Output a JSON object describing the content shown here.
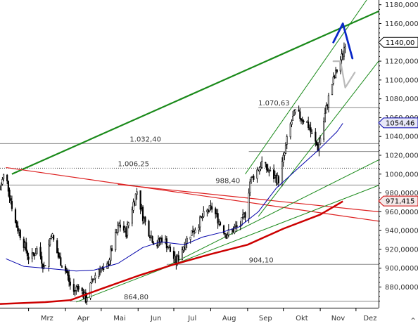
{
  "chart_data": {
    "type": "candlestick",
    "x_axis": {
      "months": [
        {
          "label": "Mrz",
          "date": "2013-03-01"
        },
        {
          "label": "Apr",
          "date": "2013-04-01"
        },
        {
          "label": "Mai",
          "date": "2013-05-01"
        },
        {
          "label": "Jun",
          "date": "2013-06-01"
        },
        {
          "label": "Jul",
          "date": "2013-07-01"
        },
        {
          "label": "Aug",
          "date": "2013-08-01"
        },
        {
          "label": "Sep",
          "date": "2013-09-01"
        },
        {
          "label": "Okt",
          "date": "2013-10-01"
        },
        {
          "label": "Nov",
          "date": "2013-11-01"
        },
        {
          "label": "Dez",
          "date": "2013-12-01"
        }
      ],
      "range": [
        "2013-02-05",
        "2013-12-20"
      ]
    },
    "y_axis": {
      "ylim": [
        858,
        1185
      ],
      "ticks": [
        "880,0000",
        "900,0000",
        "920,0000",
        "940,0000",
        "960,0000",
        "980,0000",
        "1000,000",
        "1020,000",
        "1040,000",
        "1060,000",
        "1080,000",
        "1100,000",
        "1120,000",
        "1140,000",
        "1160,000",
        "1180,000"
      ]
    },
    "badges": [
      {
        "label": "1140,00",
        "value": 1140,
        "color": "#000000",
        "fill": "#ffffff"
      },
      {
        "label": "1054,46",
        "value": 1054.46,
        "color": "#0000aa",
        "fill": "#e8e8f8"
      },
      {
        "label": "971,415",
        "value": 971.415,
        "color": "#cc0000",
        "fill": "#f4e8e8"
      }
    ],
    "levels": [
      {
        "label": "1.070,63",
        "value": 1070.63,
        "label_date": "2013-09-10",
        "start": "2013-09-10",
        "style": "solid"
      },
      {
        "label": "1.032,40",
        "value": 1032.4,
        "label_date": "2013-05-25",
        "start": "2013-02-05",
        "style": "solid"
      },
      {
        "label": "",
        "value": 1024,
        "label_date": "",
        "start": "2013-09-02",
        "style": "solid"
      },
      {
        "label": "1.006,25",
        "value": 1006.25,
        "label_date": "2013-05-15",
        "start": "2013-02-05",
        "style": "dotted"
      },
      {
        "label": "988,40",
        "value": 988.4,
        "label_date": "2013-08-05",
        "start": "2013-02-05",
        "style": "solid"
      },
      {
        "label": "904,10",
        "value": 904.1,
        "label_date": "2013-09-02",
        "start": "2013-06-25",
        "style": "solid"
      },
      {
        "label": "864,80",
        "value": 864.8,
        "label_date": "2013-05-20",
        "start": "2013-04-05",
        "style": "solid"
      }
    ],
    "trendlines": [
      {
        "name": "long-term-channel-top",
        "color": "#1a8a1a",
        "width": 2.2,
        "from": [
          "2013-02-15",
          1000
        ],
        "to": [
          "2013-12-20",
          1173
        ]
      },
      {
        "name": "resistance-falling",
        "color": "#dd2222",
        "width": 1.2,
        "from": [
          "2013-02-10",
          1007
        ],
        "to": [
          "2013-12-20",
          950
        ]
      },
      {
        "name": "resistance-falling-2",
        "color": "#dd2222",
        "width": 1.2,
        "from": [
          "2013-05-15",
          989
        ],
        "to": [
          "2013-12-20",
          960
        ]
      },
      {
        "name": "support-rising-1",
        "color": "#1a8a1a",
        "width": 1,
        "from": [
          "2013-04-10",
          864
        ],
        "to": [
          "2013-12-20",
          988
        ]
      },
      {
        "name": "support-rising-2",
        "color": "#1a8a1a",
        "width": 1,
        "from": [
          "2013-06-25",
          902
        ],
        "to": [
          "2013-12-20",
          1015
        ]
      },
      {
        "name": "channel-upper",
        "color": "#1a8a1a",
        "width": 1,
        "from": [
          "2013-08-30",
          1000
        ],
        "to": [
          "2013-12-10",
          1185
        ]
      },
      {
        "name": "channel-lower",
        "color": "#1a8a1a",
        "width": 1,
        "from": [
          "2013-09-10",
          955
        ],
        "to": [
          "2013-12-20",
          1120
        ]
      }
    ],
    "moving_averages": [
      {
        "name": "ma-short",
        "color": "#0000aa",
        "width": 1,
        "points": [
          [
            "2013-02-10",
            910
          ],
          [
            "2013-02-25",
            902
          ],
          [
            "2013-03-15",
            900
          ],
          [
            "2013-04-10",
            897
          ],
          [
            "2013-04-25",
            898
          ],
          [
            "2013-05-15",
            905
          ],
          [
            "2013-06-05",
            922
          ],
          [
            "2013-06-20",
            928
          ],
          [
            "2013-07-10",
            925
          ],
          [
            "2013-07-25",
            933
          ],
          [
            "2013-08-10",
            938
          ],
          [
            "2013-08-25",
            944
          ],
          [
            "2013-09-10",
            960
          ],
          [
            "2013-09-25",
            985
          ],
          [
            "2013-10-15",
            1008
          ],
          [
            "2013-10-30",
            1025
          ],
          [
            "2013-11-15",
            1045
          ],
          [
            "2013-11-20",
            1054
          ]
        ]
      },
      {
        "name": "ma-long",
        "color": "#cc0000",
        "width": 2.5,
        "points": [
          [
            "2013-02-05",
            862
          ],
          [
            "2013-02-25",
            863
          ],
          [
            "2013-03-15",
            864
          ],
          [
            "2013-04-05",
            866
          ],
          [
            "2013-05-01",
            878
          ],
          [
            "2013-06-01",
            892
          ],
          [
            "2013-07-01",
            904
          ],
          [
            "2013-08-01",
            915
          ],
          [
            "2013-09-01",
            925
          ],
          [
            "2013-10-01",
            942
          ],
          [
            "2013-11-01",
            957
          ],
          [
            "2013-11-20",
            971
          ]
        ]
      }
    ],
    "projections": [
      {
        "name": "projection-up",
        "color": "#0a28c8",
        "width": 2.8,
        "points": [
          [
            "2013-11-12",
            1140
          ],
          [
            "2013-11-20",
            1160
          ],
          [
            "2013-11-28",
            1123
          ]
        ]
      },
      {
        "name": "projection-down",
        "color": "#bbbbbb",
        "width": 2.2,
        "points": [
          [
            "2013-11-12",
            1120
          ],
          [
            "2013-11-18",
            1120
          ],
          [
            "2013-11-22",
            1092
          ],
          [
            "2013-11-30",
            1108
          ]
        ]
      }
    ],
    "price_path": [
      [
        "2013-02-05",
        984
      ],
      [
        "2013-02-09",
        1003
      ],
      [
        "2013-02-12",
        985
      ],
      [
        "2013-02-18",
        948
      ],
      [
        "2013-02-24",
        930
      ],
      [
        "2013-03-02",
        908
      ],
      [
        "2013-03-09",
        922
      ],
      [
        "2013-03-14",
        900
      ],
      [
        "2013-03-20",
        938
      ],
      [
        "2013-03-26",
        912
      ],
      [
        "2013-04-02",
        895
      ],
      [
        "2013-04-07",
        873
      ],
      [
        "2013-04-12",
        882
      ],
      [
        "2013-04-18",
        867
      ],
      [
        "2013-04-24",
        888
      ],
      [
        "2013-04-30",
        902
      ],
      [
        "2013-05-04",
        892
      ],
      [
        "2013-05-10",
        921
      ],
      [
        "2013-05-16",
        946
      ],
      [
        "2013-05-22",
        938
      ],
      [
        "2013-05-27",
        965
      ],
      [
        "2013-05-31",
        982
      ],
      [
        "2013-06-05",
        955
      ],
      [
        "2013-06-10",
        939
      ],
      [
        "2013-06-16",
        924
      ],
      [
        "2013-06-22",
        933
      ],
      [
        "2013-06-28",
        918
      ],
      [
        "2013-07-03",
        906
      ],
      [
        "2013-07-09",
        924
      ],
      [
        "2013-07-15",
        937
      ],
      [
        "2013-07-21",
        946
      ],
      [
        "2013-07-27",
        958
      ],
      [
        "2013-08-02",
        964
      ],
      [
        "2013-08-08",
        950
      ],
      [
        "2013-08-14",
        936
      ],
      [
        "2013-08-20",
        941
      ],
      [
        "2013-08-26",
        946
      ],
      [
        "2013-08-30",
        958
      ],
      [
        "2013-09-03",
        992
      ],
      [
        "2013-09-08",
        1002
      ],
      [
        "2013-09-13",
        1012
      ],
      [
        "2013-09-18",
        1004
      ],
      [
        "2013-09-22",
        998
      ],
      [
        "2013-09-27",
        994
      ],
      [
        "2013-10-02",
        1022
      ],
      [
        "2013-10-06",
        1049
      ],
      [
        "2013-10-11",
        1066
      ],
      [
        "2013-10-16",
        1060
      ],
      [
        "2013-10-21",
        1055
      ],
      [
        "2013-10-26",
        1038
      ],
      [
        "2013-10-30",
        1028
      ],
      [
        "2013-11-03",
        1050
      ],
      [
        "2013-11-07",
        1076
      ],
      [
        "2013-11-11",
        1096
      ],
      [
        "2013-11-15",
        1110
      ],
      [
        "2013-11-19",
        1124
      ],
      [
        "2013-11-22",
        1140
      ]
    ]
  }
}
